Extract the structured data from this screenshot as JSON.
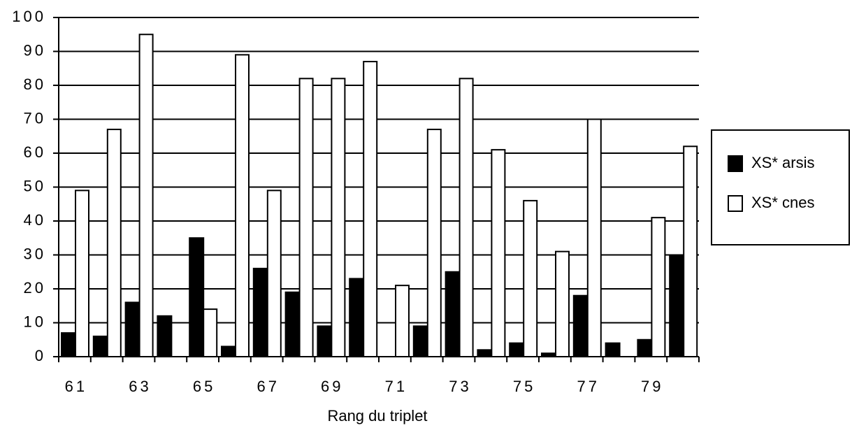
{
  "chart_data": {
    "type": "bar",
    "x_label": "Rang du triplet",
    "categories": [
      "61",
      null,
      "63",
      null,
      "65",
      null,
      "67",
      null,
      "69",
      null,
      "71",
      null,
      "73",
      null,
      "75",
      null,
      "77",
      null,
      "79",
      null
    ],
    "series": [
      {
        "name": "XS* arsis",
        "color": "#000000",
        "values": [
          7,
          6,
          16,
          12,
          35,
          3,
          26,
          19,
          9,
          23,
          0,
          9,
          25,
          2,
          4,
          1,
          18,
          4,
          5,
          30
        ]
      },
      {
        "name": "XS* cnes",
        "color": "#ffffff",
        "values": [
          49,
          67,
          95,
          0,
          14,
          89,
          49,
          82,
          82,
          87,
          21,
          67,
          82,
          61,
          46,
          31,
          70,
          0,
          41,
          62
        ]
      }
    ],
    "ylim": [
      0,
      100
    ],
    "yticks": [
      0,
      10,
      20,
      30,
      40,
      50,
      60,
      70,
      80,
      90,
      100
    ],
    "grid": true,
    "legend": "right"
  }
}
